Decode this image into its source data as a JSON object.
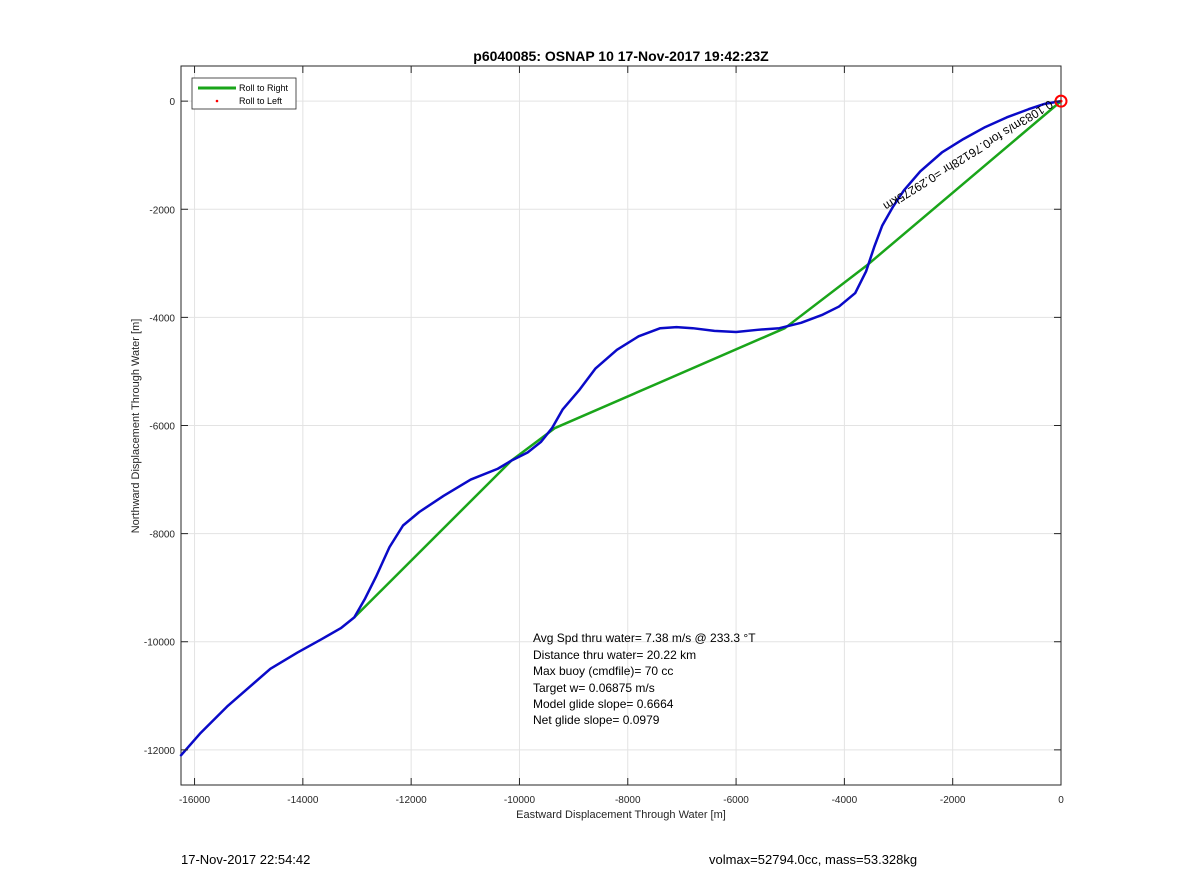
{
  "chart_data": {
    "type": "line",
    "title": "p6040085: OSNAP 10 17-Nov-2017 19:42:23Z",
    "xlabel": "Eastward Displacement Through Water [m]",
    "ylabel": "Northward Displacement Through Water [m]",
    "xlim": [
      -16250,
      0
    ],
    "ylim": [
      -12650,
      650
    ],
    "xticks": [
      -16000,
      -14000,
      -12000,
      -10000,
      -8000,
      -6000,
      -4000,
      -2000,
      0
    ],
    "yticks": [
      0,
      -2000,
      -4000,
      -6000,
      -8000,
      -10000,
      -12000
    ],
    "grid": true,
    "legend_position": "top-left",
    "series": [
      {
        "name": "Roll to Right",
        "color": "#1aa51a",
        "x": [
          0,
          -3600,
          -5100,
          -9350,
          -10150,
          -13050
        ],
        "y": [
          0,
          -3050,
          -4200,
          -6050,
          -6650,
          -9550
        ]
      },
      {
        "name": "Roll to Left",
        "color": "#ff0000",
        "x": [
          0
        ],
        "y": [
          0
        ]
      },
      {
        "name": "",
        "color": "#0a0ac8",
        "x": [
          -16250,
          -15900,
          -15400,
          -15000,
          -14600,
          -14100,
          -13650,
          -13300,
          -13050,
          -12850,
          -12650,
          -12400,
          -12150,
          -11850,
          -11400,
          -10900,
          -10400,
          -10150,
          -9850,
          -9600,
          -9400,
          -9200,
          -8900,
          -8600,
          -8200,
          -7800,
          -7400,
          -7100,
          -6800,
          -6400,
          -6000,
          -5600,
          -5200,
          -4800,
          -4400,
          -4100,
          -3800,
          -3600,
          -3450,
          -3300,
          -3100,
          -2900,
          -2600,
          -2200,
          -1800,
          -1400,
          -1000,
          -600,
          -300,
          0
        ],
        "y": [
          -12100,
          -11700,
          -11200,
          -10850,
          -10500,
          -10200,
          -9950,
          -9750,
          -9550,
          -9200,
          -8800,
          -8250,
          -7850,
          -7600,
          -7300,
          -7000,
          -6800,
          -6650,
          -6500,
          -6300,
          -6050,
          -5700,
          -5350,
          -4950,
          -4600,
          -4350,
          -4200,
          -4180,
          -4200,
          -4250,
          -4270,
          -4230,
          -4200,
          -4100,
          -3950,
          -3800,
          -3550,
          -3150,
          -2700,
          -2300,
          -1950,
          -1650,
          -1300,
          -950,
          -700,
          -480,
          -300,
          -150,
          -50,
          0
        ]
      }
    ],
    "annotations": [
      "Avg Spd thru water=  7.38 m/s @ 233.3 °T",
      "Distance thru water= 20.22 km",
      "Max buoy (cmdfile)= 70 cc",
      "Target w= 0.06875 m/s",
      "Model glide slope= 0.6664",
      "Net glide slope= 0.0979"
    ],
    "rotated_label": "0.1083m/s for0.76128hr =0.29275km",
    "end_marker": {
      "x": 0,
      "y": 0,
      "color": "#ff0000"
    }
  },
  "footer": {
    "left": "17-Nov-2017 22:54:42",
    "right": "volmax=52794.0cc, mass=53.328kg"
  }
}
